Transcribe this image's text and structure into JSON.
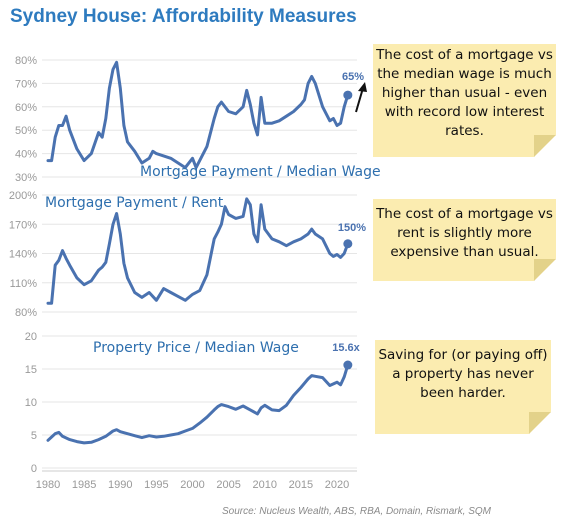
{
  "title": "Sydney House: Affordability Measures",
  "source": "Source: Nucleus Wealth, ABS, RBA, Domain, Rismark, SQM",
  "colors": {
    "line": "#4a72b0",
    "title": "#2e7bbf",
    "label": "#2e6fae",
    "note_bg": "#fbecb0",
    "axis_text": "#999999"
  },
  "notes": [
    {
      "text": "The cost of a mortgage vs the median wage is much higher than usual - even with record low interest rates."
    },
    {
      "text": "The cost of a mortgage vs rent is slightly more expensive than usual."
    },
    {
      "text": "Saving for (or paying off) a property has never been harder."
    }
  ],
  "chart_data": [
    {
      "type": "line",
      "title": "Mortgage Payment / Median Wage",
      "x_ticks": [
        1980,
        1985,
        1990,
        1995,
        2000,
        2005,
        2010,
        2015,
        2020
      ],
      "ylim": [
        30,
        80
      ],
      "y_ticks": [
        "30%",
        "40%",
        "50%",
        "60%",
        "70%",
        "80%"
      ],
      "y_tick_values": [
        30,
        40,
        50,
        60,
        70,
        80
      ],
      "grid": "horizontal",
      "end_label": "65%",
      "x": [
        1980,
        1980.5,
        1981,
        1981.5,
        1982,
        1982.5,
        1983,
        1984,
        1985,
        1986,
        1987,
        1987.5,
        1988,
        1988.5,
        1989,
        1989.5,
        1990,
        1990.5,
        1991,
        1992,
        1993,
        1994,
        1994.5,
        1995,
        1996,
        1997,
        1998,
        1999,
        2000,
        2000.5,
        2001,
        2002,
        2003,
        2003.5,
        2004,
        2005,
        2006,
        2007,
        2007.5,
        2008,
        2008.5,
        2009,
        2009.5,
        2010,
        2011,
        2012,
        2013,
        2014,
        2015,
        2015.5,
        2016,
        2016.5,
        2017,
        2018,
        2019,
        2019.5,
        2020,
        2020.5,
        2021,
        2021.5
      ],
      "y": [
        37,
        37,
        47,
        52,
        52,
        56,
        50,
        42,
        37,
        40,
        49,
        47,
        55,
        68,
        76,
        79,
        68,
        52,
        45,
        41,
        36,
        38,
        41,
        40,
        39,
        38,
        36,
        34,
        38,
        34,
        37,
        43,
        55,
        60,
        62,
        58,
        57,
        60,
        67,
        61,
        53,
        48,
        64,
        53,
        53,
        54,
        56,
        58,
        61,
        63,
        70,
        73,
        70,
        60,
        54,
        55,
        52,
        53,
        60,
        65
      ]
    },
    {
      "type": "line",
      "title": "Mortgage Payment / Rent",
      "x_ticks": [
        1980,
        1985,
        1990,
        1995,
        2000,
        2005,
        2010,
        2015,
        2020
      ],
      "ylim": [
        80,
        200
      ],
      "y_ticks": [
        "80%",
        "110%",
        "140%",
        "170%",
        "200%"
      ],
      "y_tick_values": [
        80,
        110,
        140,
        170,
        200
      ],
      "grid": "horizontal",
      "end_label": "150%",
      "x": [
        1980,
        1980.5,
        1981,
        1981.5,
        1982,
        1982.5,
        1983,
        1984,
        1985,
        1986,
        1987,
        1987.5,
        1988,
        1988.5,
        1989,
        1989.5,
        1990,
        1990.5,
        1991,
        1992,
        1993,
        1994,
        1995,
        1996,
        1997,
        1998,
        1999,
        2000,
        2001,
        2002,
        2003,
        2003.5,
        2004,
        2004.5,
        2005,
        2006,
        2007,
        2007.5,
        2008,
        2008.5,
        2009,
        2009.5,
        2010,
        2011,
        2012,
        2013,
        2014,
        2015,
        2016,
        2016.5,
        2017,
        2018,
        2019,
        2019.5,
        2020,
        2020.5,
        2021,
        2021.5
      ],
      "y": [
        89,
        89,
        128,
        133,
        143,
        135,
        128,
        115,
        108,
        112,
        123,
        126,
        131,
        150,
        170,
        181,
        160,
        130,
        115,
        100,
        95,
        100,
        92,
        104,
        100,
        96,
        92,
        98,
        102,
        118,
        155,
        162,
        170,
        188,
        180,
        176,
        178,
        196,
        190,
        160,
        152,
        190,
        165,
        155,
        152,
        148,
        152,
        155,
        160,
        165,
        160,
        155,
        140,
        137,
        139,
        136,
        140,
        150
      ]
    },
    {
      "type": "line",
      "title": "Property Price / Median Wage",
      "x_ticks": [
        1980,
        1985,
        1990,
        1995,
        2000,
        2005,
        2010,
        2015,
        2020
      ],
      "ylim": [
        0,
        20
      ],
      "y_ticks": [
        "0",
        "5",
        "10",
        "15",
        "20"
      ],
      "y_tick_values": [
        0,
        5,
        10,
        15,
        20
      ],
      "grid": "horizontal",
      "end_label": "15.6x",
      "x": [
        1980,
        1980.5,
        1981,
        1981.5,
        1982,
        1983,
        1984,
        1985,
        1986,
        1987,
        1988,
        1989,
        1989.5,
        1990,
        1991,
        1992,
        1993,
        1994,
        1995,
        1996,
        1997,
        1998,
        1999,
        2000,
        2001,
        2002,
        2003,
        2003.5,
        2004,
        2005,
        2006,
        2007,
        2008,
        2009,
        2009.5,
        2010,
        2011,
        2012,
        2013,
        2014,
        2015,
        2016,
        2016.5,
        2017,
        2018,
        2019,
        2020,
        2020.5,
        2021,
        2021.5
      ],
      "y": [
        4.2,
        4.7,
        5.2,
        5.4,
        4.8,
        4.3,
        4.0,
        3.8,
        3.9,
        4.3,
        4.8,
        5.6,
        5.8,
        5.5,
        5.2,
        4.9,
        4.6,
        4.9,
        4.7,
        4.8,
        5.0,
        5.2,
        5.6,
        6.0,
        6.8,
        7.7,
        8.8,
        9.3,
        9.6,
        9.3,
        8.9,
        9.4,
        8.8,
        8.2,
        9.1,
        9.5,
        8.8,
        8.7,
        9.5,
        11.0,
        12.2,
        13.5,
        14.0,
        13.9,
        13.7,
        12.5,
        13.0,
        12.6,
        13.8,
        15.6
      ]
    }
  ]
}
